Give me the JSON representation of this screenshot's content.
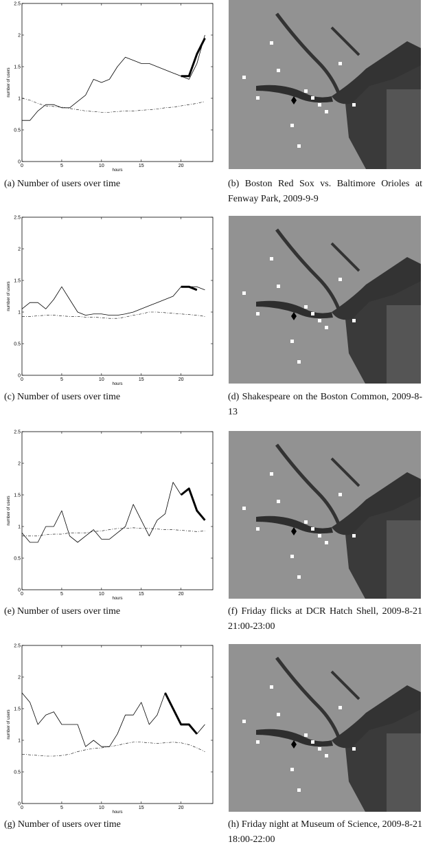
{
  "chart_data": [
    {
      "type": "line",
      "caption": "(a) Number of users over time",
      "xlabel": "hours",
      "ylabel": "number of users",
      "x": [
        0,
        1,
        2,
        3,
        4,
        5,
        6,
        7,
        8,
        9,
        10,
        11,
        12,
        13,
        14,
        15,
        16,
        17,
        18,
        19,
        20,
        21,
        22,
        23
      ],
      "xlim": [
        0,
        24
      ],
      "xticks": [
        0,
        5,
        10,
        15,
        20
      ],
      "ylim": [
        0,
        2.5
      ],
      "yticks": [
        0,
        0.5,
        1,
        1.5,
        2,
        2.5
      ],
      "series": [
        {
          "style": "solid",
          "width": 0.8,
          "color": "#000",
          "values": [
            0.65,
            0.65,
            0.8,
            0.9,
            0.9,
            0.85,
            0.85,
            0.95,
            1.05,
            1.3,
            1.25,
            1.3,
            1.5,
            1.65,
            1.6,
            1.55,
            1.55,
            1.5,
            1.45,
            1.4,
            1.35,
            1.3,
            1.55,
            2.0
          ]
        },
        {
          "style": "dashed",
          "width": 0.6,
          "color": "#000",
          "values": [
            1.0,
            0.97,
            0.92,
            0.88,
            0.87,
            0.86,
            0.84,
            0.82,
            0.8,
            0.79,
            0.78,
            0.78,
            0.79,
            0.8,
            0.8,
            0.81,
            0.82,
            0.83,
            0.85,
            0.86,
            0.88,
            0.9,
            0.92,
            0.95
          ]
        },
        {
          "style": "solid",
          "width": 3,
          "color": "#000",
          "values": [
            null,
            null,
            null,
            null,
            null,
            null,
            null,
            null,
            null,
            null,
            null,
            null,
            null,
            null,
            null,
            null,
            null,
            null,
            null,
            null,
            1.35,
            1.35,
            1.7,
            1.95
          ]
        }
      ]
    },
    {
      "type": "line",
      "caption": "(c) Number of users over time",
      "xlabel": "hours",
      "ylabel": "number of users",
      "x": [
        0,
        1,
        2,
        3,
        4,
        5,
        6,
        7,
        8,
        9,
        10,
        11,
        12,
        13,
        14,
        15,
        16,
        17,
        18,
        19,
        20,
        21,
        22,
        23
      ],
      "xlim": [
        0,
        24
      ],
      "xticks": [
        0,
        5,
        10,
        15,
        20
      ],
      "ylim": [
        0,
        2.5
      ],
      "yticks": [
        0,
        0.5,
        1,
        1.5,
        2,
        2.5
      ],
      "series": [
        {
          "style": "solid",
          "width": 0.8,
          "color": "#000",
          "values": [
            1.05,
            1.15,
            1.15,
            1.05,
            1.2,
            1.4,
            1.2,
            1.0,
            0.95,
            0.97,
            0.97,
            0.95,
            0.95,
            0.97,
            1.0,
            1.05,
            1.1,
            1.15,
            1.2,
            1.25,
            1.4,
            1.4,
            1.4,
            1.35
          ]
        },
        {
          "style": "dashed",
          "width": 0.6,
          "color": "#000",
          "values": [
            0.93,
            0.93,
            0.94,
            0.95,
            0.95,
            0.94,
            0.93,
            0.93,
            0.92,
            0.92,
            0.91,
            0.9,
            0.9,
            0.92,
            0.95,
            0.97,
            1.0,
            1.0,
            0.99,
            0.98,
            0.97,
            0.96,
            0.95,
            0.93
          ]
        },
        {
          "style": "solid",
          "width": 3,
          "color": "#000",
          "values": [
            null,
            null,
            null,
            null,
            null,
            null,
            null,
            null,
            null,
            null,
            null,
            null,
            null,
            null,
            null,
            null,
            null,
            null,
            null,
            null,
            1.4,
            1.4,
            1.35,
            null
          ]
        }
      ]
    },
    {
      "type": "line",
      "caption": "(e) Number of users over time",
      "xlabel": "hours",
      "ylabel": "number of users",
      "x": [
        0,
        1,
        2,
        3,
        4,
        5,
        6,
        7,
        8,
        9,
        10,
        11,
        12,
        13,
        14,
        15,
        16,
        17,
        18,
        19,
        20,
        21,
        22,
        23
      ],
      "xlim": [
        0,
        24
      ],
      "xticks": [
        0,
        5,
        10,
        15,
        20
      ],
      "ylim": [
        0,
        2.5
      ],
      "yticks": [
        0,
        0.5,
        1,
        1.5,
        2,
        2.5
      ],
      "series": [
        {
          "style": "solid",
          "width": 0.8,
          "color": "#000",
          "values": [
            0.9,
            0.75,
            0.75,
            1.0,
            1.0,
            1.25,
            0.85,
            0.75,
            0.85,
            0.95,
            0.8,
            0.8,
            0.9,
            1.0,
            1.35,
            1.1,
            0.85,
            1.1,
            1.2,
            1.7,
            1.5,
            1.6,
            1.25,
            1.1
          ]
        },
        {
          "style": "dashed",
          "width": 0.6,
          "color": "#000",
          "values": [
            0.85,
            0.85,
            0.85,
            0.87,
            0.88,
            0.88,
            0.9,
            0.9,
            0.9,
            0.92,
            0.93,
            0.95,
            0.97,
            0.97,
            0.98,
            0.97,
            0.97,
            0.96,
            0.95,
            0.95,
            0.94,
            0.93,
            0.92,
            0.93
          ]
        },
        {
          "style": "solid",
          "width": 3,
          "color": "#000",
          "values": [
            null,
            null,
            null,
            null,
            null,
            null,
            null,
            null,
            null,
            null,
            null,
            null,
            null,
            null,
            null,
            null,
            null,
            null,
            null,
            null,
            1.5,
            1.6,
            1.25,
            1.1
          ]
        }
      ]
    },
    {
      "type": "line",
      "caption": "(g) Number of users over time",
      "xlabel": "hours",
      "ylabel": "number of users",
      "x": [
        0,
        1,
        2,
        3,
        4,
        5,
        6,
        7,
        8,
        9,
        10,
        11,
        12,
        13,
        14,
        15,
        16,
        17,
        18,
        19,
        20,
        21,
        22,
        23
      ],
      "xlim": [
        0,
        24
      ],
      "xticks": [
        0,
        5,
        10,
        15,
        20
      ],
      "ylim": [
        0,
        2.5
      ],
      "yticks": [
        0,
        0.5,
        1,
        1.5,
        2,
        2.5
      ],
      "series": [
        {
          "style": "solid",
          "width": 0.8,
          "color": "#000",
          "values": [
            1.75,
            1.6,
            1.25,
            1.4,
            1.45,
            1.25,
            1.25,
            1.25,
            0.9,
            1.0,
            0.9,
            0.9,
            1.1,
            1.4,
            1.4,
            1.6,
            1.25,
            1.4,
            1.75,
            1.5,
            1.25,
            1.25,
            1.1,
            1.25
          ]
        },
        {
          "style": "dashed",
          "width": 0.6,
          "color": "#000",
          "values": [
            0.78,
            0.77,
            0.76,
            0.75,
            0.75,
            0.76,
            0.78,
            0.82,
            0.85,
            0.87,
            0.88,
            0.9,
            0.92,
            0.95,
            0.97,
            0.97,
            0.96,
            0.95,
            0.96,
            0.97,
            0.96,
            0.93,
            0.88,
            0.82
          ]
        },
        {
          "style": "solid",
          "width": 3,
          "color": "#000",
          "values": [
            null,
            null,
            null,
            null,
            null,
            null,
            null,
            null,
            null,
            null,
            null,
            null,
            null,
            null,
            null,
            null,
            null,
            null,
            1.75,
            1.5,
            1.25,
            1.25,
            1.1,
            null
          ]
        }
      ]
    }
  ],
  "map_captions": [
    "(b) Boston Red Sox vs. Baltimore Orioles at Fenway Park, 2009-9-9",
    "(d) Shakespeare on the Boston Common, 2009-8-13",
    "(f) Friday flicks at DCR Hatch Shell, 2009-8-21 21:00-23:00",
    "(h) Friday night at Museum of Science, 2009-8-21 18:00-22:00"
  ]
}
